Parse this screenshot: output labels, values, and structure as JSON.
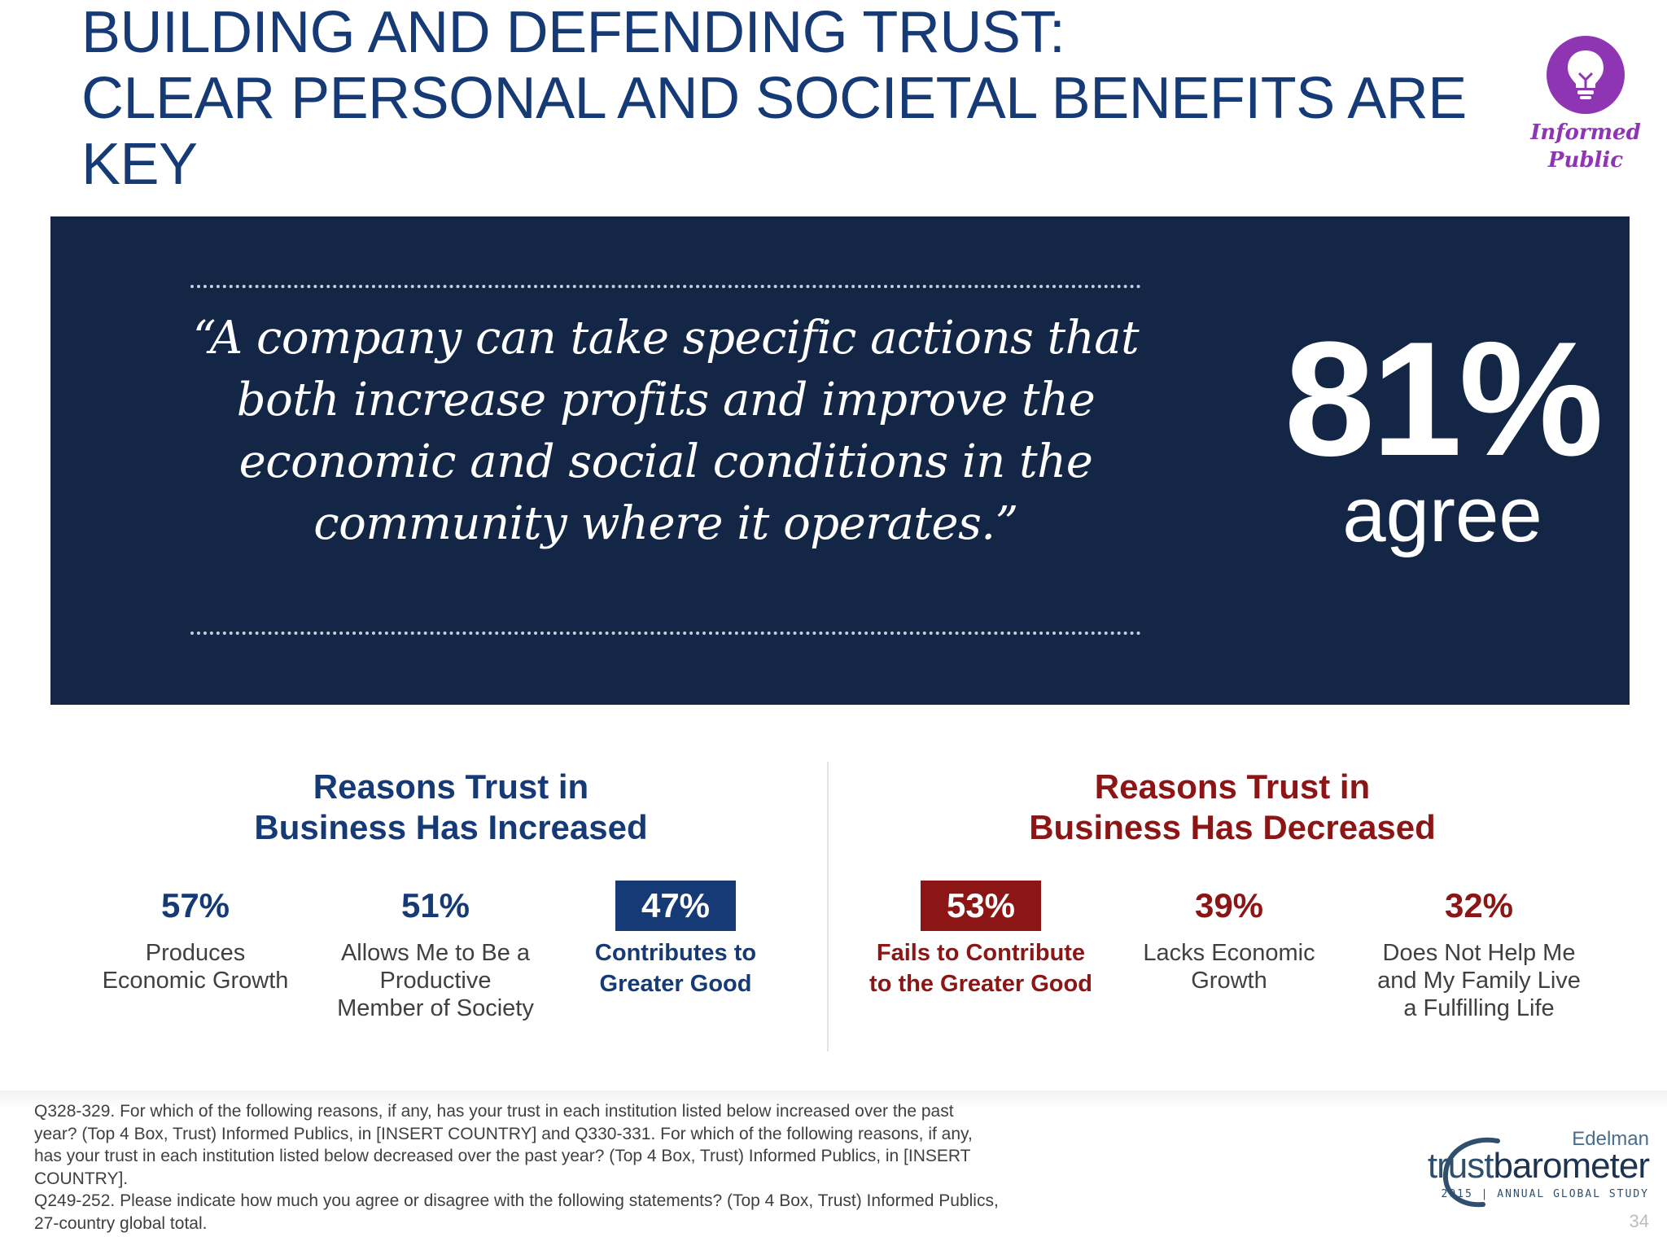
{
  "title": {
    "line1": "BUILDING AND DEFENDING TRUST:",
    "line2": "CLEAR PERSONAL AND SOCIETAL BENEFITS ARE",
    "line3": "KEY"
  },
  "badge": {
    "icon": "lightbulb-icon",
    "line1": "Informed",
    "line2": "Public",
    "color": "#8e35b4"
  },
  "quote": {
    "text": "“A company can take specific actions that both increase profits and improve the economic and social conditions in the community where it operates.”",
    "stat_value": "81%",
    "stat_label": "agree",
    "panel_color": "#132645"
  },
  "increased": {
    "heading_line1": "Reasons Trust in",
    "heading_line2": "Business Has Increased",
    "color": "#163a75",
    "items": [
      {
        "pct": "57%",
        "label_lines": [
          "Produces",
          "Economic Growth"
        ],
        "highlight": false
      },
      {
        "pct": "51%",
        "label_lines": [
          "Allows Me to Be a",
          "Productive",
          "Member of Society"
        ],
        "highlight": false
      },
      {
        "pct": "47%",
        "label_lines": [
          "Contributes to",
          "Greater Good"
        ],
        "highlight": true
      }
    ]
  },
  "decreased": {
    "heading_line1": "Reasons Trust in",
    "heading_line2": "Business Has Decreased",
    "color": "#8c1515",
    "items": [
      {
        "pct": "53%",
        "label_lines": [
          "Fails to Contribute",
          "to the Greater Good"
        ],
        "highlight": true
      },
      {
        "pct": "39%",
        "label_lines": [
          "Lacks Economic",
          "Growth"
        ],
        "highlight": false
      },
      {
        "pct": "32%",
        "label_lines": [
          "Does Not Help Me",
          "and My Family Live",
          "a Fulfilling Life"
        ],
        "highlight": false
      }
    ]
  },
  "footnote": [
    "Q328-329. For which of the following reasons, if any, has your trust in each institution listed below increased over the past",
    "year?  (Top 4 Box, Trust) Informed Publics, in [INSERT COUNTRY] and Q330-331. For which of the following reasons, if any,",
    "has your trust in each institution listed below decreased over the past year?  (Top 4 Box, Trust) Informed Publics, in [INSERT",
    "COUNTRY].",
    "Q249-252. Please indicate how much you agree or disagree with the following statements? (Top 4 Box, Trust) Informed Publics,",
    "27-country global total."
  ],
  "logo": {
    "brand": "Edelman",
    "main_a": "trust",
    "main_b": "barometer",
    "sub": "2015 | ANNUAL GLOBAL STUDY"
  },
  "page_number": "34"
}
